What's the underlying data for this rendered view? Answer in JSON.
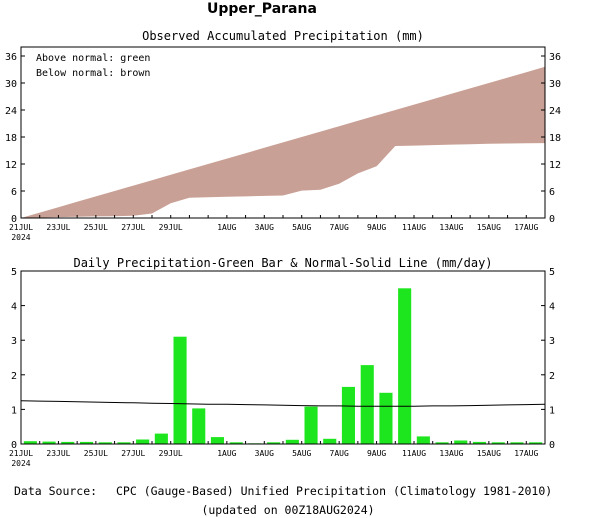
{
  "page_title": "Upper_Parana",
  "footer": {
    "source_label": "Data Source:",
    "source_text": "CPC (Gauge-Based) Unified Precipitation (Climatology 1981-2010)",
    "updated": "(updated on 00Z18AUG2024)"
  },
  "colors": {
    "observed_fill": "#c9a095",
    "bar": "#1ee61e",
    "source_label": "#e8584c",
    "line": "#000000"
  },
  "chart_data": [
    {
      "type": "area",
      "title": "Observed Accumulated Precipitation (mm)",
      "legend": [
        "Above normal: green",
        "Below normal: brown"
      ],
      "legend_position": "top-left",
      "x_tick_labels": [
        "21JUL",
        "23JUL",
        "25JUL",
        "27JUL",
        "29JUL",
        "1AUG",
        "3AUG",
        "5AUG",
        "7AUG",
        "9AUG",
        "11AUG",
        "13AUG",
        "15AUG",
        "17AUG"
      ],
      "x_tick_days": [
        0,
        2,
        4,
        6,
        8,
        11,
        13,
        15,
        17,
        19,
        21,
        23,
        25,
        27
      ],
      "x_year_label": "2024",
      "ylim": [
        0,
        38
      ],
      "yticks": [
        0,
        6,
        12,
        18,
        24,
        30,
        36
      ],
      "x_days": [
        0,
        1,
        2,
        3,
        4,
        5,
        6,
        7,
        8,
        9,
        10,
        11,
        12,
        13,
        14,
        15,
        16,
        17,
        18,
        19,
        20,
        21,
        22,
        23,
        24,
        25,
        26,
        27,
        28
      ],
      "series": [
        {
          "values": [
            0.0,
            0.1,
            0.2,
            0.3,
            0.35,
            0.4,
            0.5,
            1.0,
            3.3,
            4.5,
            4.6,
            4.7,
            4.8,
            4.9,
            5.0,
            6.1,
            6.3,
            7.6,
            9.9,
            11.5,
            16.0,
            16.1,
            16.2,
            16.3,
            16.4,
            16.5,
            16.55,
            16.6,
            16.65
          ]
        },
        {
          "values": [
            0.0,
            1.2,
            2.4,
            3.6,
            4.8,
            6.0,
            7.2,
            8.4,
            9.6,
            10.8,
            12.0,
            13.2,
            14.4,
            15.6,
            16.8,
            18.0,
            19.2,
            20.4,
            21.6,
            22.8,
            24.0,
            25.2,
            26.4,
            27.6,
            28.8,
            30.0,
            31.2,
            32.4,
            33.6
          ]
        }
      ]
    },
    {
      "type": "bar",
      "title": "Daily Precipitation-Green Bar & Normal-Solid Line (mm/day)",
      "x_tick_labels": [
        "21JUL",
        "23JUL",
        "25JUL",
        "27JUL",
        "29JUL",
        "1AUG",
        "3AUG",
        "5AUG",
        "7AUG",
        "9AUG",
        "11AUG",
        "13AUG",
        "15AUG",
        "17AUG"
      ],
      "x_tick_days": [
        0,
        2,
        4,
        6,
        8,
        11,
        13,
        15,
        17,
        19,
        21,
        23,
        25,
        27
      ],
      "x_year_label": "2024",
      "ylim": [
        0,
        5
      ],
      "yticks": [
        0,
        1,
        2,
        3,
        4,
        5
      ],
      "x_days": [
        0,
        1,
        2,
        3,
        4,
        5,
        6,
        7,
        8,
        9,
        10,
        11,
        12,
        13,
        14,
        15,
        16,
        17,
        18,
        19,
        20,
        21,
        22,
        23,
        24,
        25,
        26,
        27
      ],
      "series": [
        {
          "values": [
            0.08,
            0.07,
            0.06,
            0.06,
            0.05,
            0.05,
            0.13,
            0.3,
            3.1,
            1.03,
            0.2,
            0.05,
            0.02,
            0.05,
            0.12,
            1.08,
            0.15,
            1.65,
            2.28,
            1.48,
            4.5,
            0.22,
            0.05,
            0.1,
            0.06,
            0.05,
            0.05,
            0.05
          ]
        },
        {
          "values": [
            1.25,
            1.24,
            1.23,
            1.22,
            1.21,
            1.2,
            1.19,
            1.18,
            1.17,
            1.16,
            1.15,
            1.15,
            1.14,
            1.13,
            1.12,
            1.11,
            1.1,
            1.1,
            1.09,
            1.09,
            1.09,
            1.09,
            1.1,
            1.1,
            1.11,
            1.12,
            1.13,
            1.14
          ]
        }
      ]
    }
  ]
}
